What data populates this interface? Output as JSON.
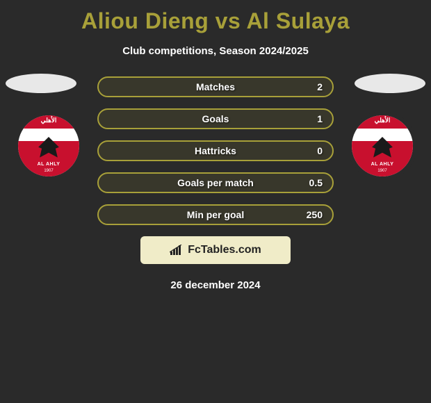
{
  "title": "Aliou Dieng vs Al Sulaya",
  "subtitle": "Club competitions, Season 2024/2025",
  "date": "26 december 2024",
  "branding": {
    "text": "FcTables.com"
  },
  "colors": {
    "accent": "#a8a039",
    "background": "#2a2a2a",
    "text": "#ffffff",
    "branding_bg": "#f0ecc8",
    "branding_text": "#222222",
    "badge_red": "#c8102e",
    "badge_white": "#ffffff"
  },
  "typography": {
    "title_fontsize": 32,
    "title_weight": 800,
    "subtitle_fontsize": 15,
    "stat_fontsize": 14,
    "date_fontsize": 15
  },
  "layout": {
    "stat_row_height": 30,
    "stat_row_gap": 16,
    "stats_width": 340,
    "border_radius": 15,
    "border_width": 2
  },
  "stats": [
    {
      "label": "Matches",
      "value": "2"
    },
    {
      "label": "Goals",
      "value": "1"
    },
    {
      "label": "Hattricks",
      "value": "0"
    },
    {
      "label": "Goals per match",
      "value": "0.5"
    },
    {
      "label": "Min per goal",
      "value": "250"
    }
  ],
  "clubs": {
    "left": {
      "name": "AL AHLY",
      "year": "1907",
      "arabic": "الأهلي"
    },
    "right": {
      "name": "AL AHLY",
      "year": "1907",
      "arabic": "الأهلي"
    }
  }
}
